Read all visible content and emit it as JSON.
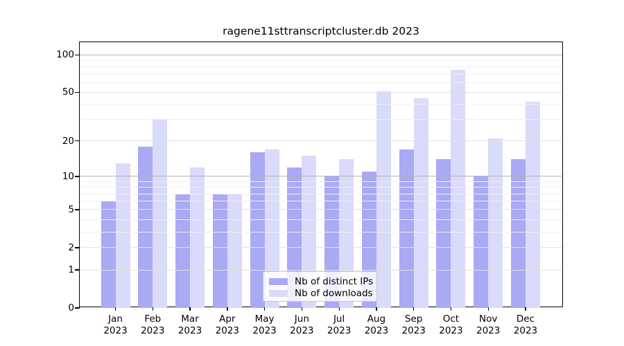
{
  "chart_data": {
    "type": "bar",
    "title": "ragene11sttranscriptcluster.db 2023",
    "yscale": "log1p",
    "grid": true,
    "legend_position": "bottom-center",
    "categories": [
      "Jan",
      "Feb",
      "Mar",
      "Apr",
      "May",
      "Jun",
      "Jul",
      "Aug",
      "Sep",
      "Oct",
      "Nov",
      "Dec"
    ],
    "category_year": "2023",
    "series": [
      {
        "name": "Nb of distinct IPs",
        "color": "#a9a9f4",
        "values": [
          6,
          18,
          7,
          7,
          16,
          12,
          10,
          11,
          17,
          14,
          10,
          14
        ]
      },
      {
        "name": "Nb of downloads",
        "color": "#dadafa",
        "values": [
          13,
          30,
          12,
          7,
          17,
          15,
          14,
          51,
          45,
          76,
          21,
          42
        ]
      }
    ],
    "y_ticks": [
      0,
      1,
      2,
      5,
      10,
      20,
      50,
      100
    ],
    "y_decade_lines": [
      10,
      100
    ],
    "y_minor_gridlines": [
      3,
      4,
      6,
      7,
      8,
      9,
      30,
      40,
      60,
      70,
      80,
      90
    ],
    "ylim": [
      0,
      126
    ]
  }
}
